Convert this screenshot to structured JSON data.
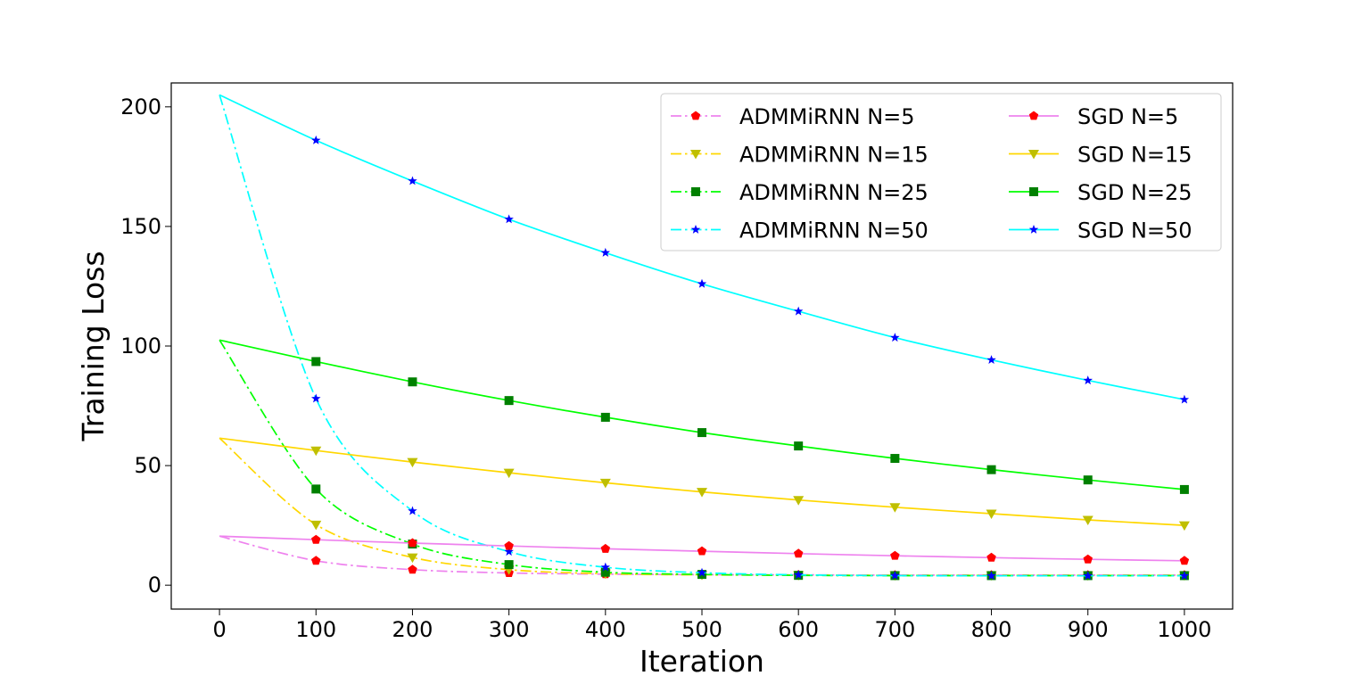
{
  "chart_data": {
    "type": "line",
    "xlabel": "Iteration",
    "ylabel": "Training Loss",
    "xlim": [
      -50,
      1050
    ],
    "ylim": [
      -10,
      210
    ],
    "xticks": [
      0,
      100,
      200,
      300,
      400,
      500,
      600,
      700,
      800,
      900,
      1000
    ],
    "yticks": [
      0,
      50,
      100,
      150,
      200
    ],
    "x": [
      0,
      100,
      200,
      300,
      400,
      500,
      600,
      700,
      800,
      900,
      1000
    ],
    "grid": false,
    "legend_position": "upper-right",
    "legend_columns": 2,
    "series": [
      {
        "name": "ADMMiRNN N=5",
        "color": "#ee82ee",
        "style": "dashdot",
        "marker": "pentagon",
        "marker_color": "#ff0000",
        "values": [
          20.5,
          10.2,
          6.5,
          5.1,
          4.6,
          4.4,
          4.3,
          4.2,
          4.2,
          4.2,
          4.2
        ]
      },
      {
        "name": "ADMMiRNN N=15",
        "color": "#ffd700",
        "style": "dashdot",
        "marker": "triangle-down",
        "marker_color": "#bfbf00",
        "values": [
          61.5,
          25.3,
          11.6,
          6.5,
          4.8,
          4.3,
          4.2,
          4.1,
          4.1,
          4.1,
          4.1
        ]
      },
      {
        "name": "ADMMiRNN N=25",
        "color": "#00ff00",
        "style": "dashdot",
        "marker": "square",
        "marker_color": "#008000",
        "values": [
          102.5,
          40.2,
          17.2,
          8.6,
          5.4,
          4.5,
          4.1,
          4.0,
          4.0,
          4.0,
          4.0
        ]
      },
      {
        "name": "ADMMiRNN N=50",
        "color": "#00ffff",
        "style": "dashdot",
        "marker": "star",
        "marker_color": "#0000ff",
        "values": [
          205,
          78,
          31,
          14,
          7.5,
          5.2,
          4.3,
          4.0,
          3.9,
          3.9,
          3.9
        ]
      },
      {
        "name": "SGD N=5",
        "color": "#ee82ee",
        "style": "solid",
        "marker": "pentagon",
        "marker_color": "#ff0000",
        "values": [
          20.5,
          19.0,
          17.6,
          16.4,
          15.2,
          14.2,
          13.2,
          12.3,
          11.5,
          10.8,
          10.2
        ]
      },
      {
        "name": "SGD N=15",
        "color": "#ffd700",
        "style": "solid",
        "marker": "triangle-down",
        "marker_color": "#bfbf00",
        "values": [
          61.5,
          56.3,
          51.5,
          47.0,
          42.8,
          39.0,
          35.6,
          32.6,
          29.9,
          27.3,
          25.0
        ]
      },
      {
        "name": "SGD N=25",
        "color": "#00ff00",
        "style": "solid",
        "marker": "square",
        "marker_color": "#008000",
        "values": [
          102.5,
          93.5,
          85.0,
          77.2,
          70.2,
          63.8,
          58.2,
          53.0,
          48.3,
          44.0,
          40.0
        ]
      },
      {
        "name": "SGD N=50",
        "color": "#00ffff",
        "style": "solid",
        "marker": "star",
        "marker_color": "#0000ff",
        "values": [
          205,
          186,
          169,
          153,
          139,
          126,
          114.5,
          103.5,
          94.2,
          85.6,
          77.6
        ]
      }
    ]
  }
}
